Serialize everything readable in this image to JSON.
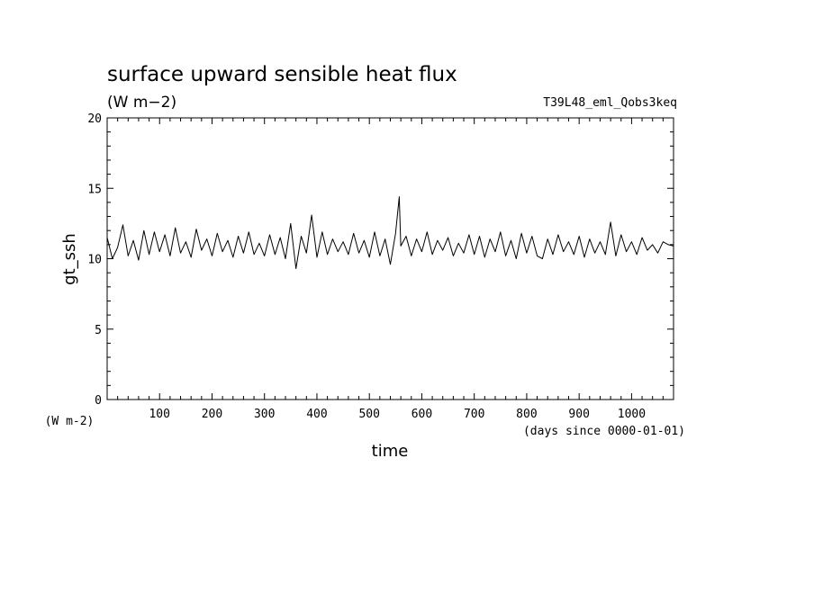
{
  "chart_data": {
    "type": "line",
    "title": "surface upward sensible heat flux",
    "units": "(W m−2)",
    "run_label": "T39L48_eml_Qobs3keq",
    "ylabel": "gt_ssh",
    "xlabel": "time",
    "x_units": "(days since 0000-01-01)",
    "y_units_bottom": "(W m-2)",
    "xlim": [
      0,
      1080
    ],
    "ylim": [
      0,
      20
    ],
    "x_ticks": [
      100,
      200,
      300,
      400,
      500,
      600,
      700,
      800,
      900,
      1000
    ],
    "y_ticks": [
      0,
      5,
      10,
      15,
      20
    ],
    "x_tick_labels": [
      "100",
      "200",
      "300",
      "400",
      "500",
      "600",
      "700",
      "800",
      "900",
      "1000"
    ],
    "y_tick_labels": [
      "0",
      "5",
      "10",
      "15",
      "20"
    ],
    "grid": false,
    "line_color": "#000000",
    "series": [
      {
        "x": [
          0,
          10,
          20,
          30,
          40,
          50,
          60,
          70,
          80,
          90,
          100,
          110,
          120,
          130,
          140,
          150,
          160,
          170,
          180,
          190,
          200,
          210,
          220,
          230,
          240,
          250,
          260,
          270,
          280,
          290,
          300,
          310,
          320,
          330,
          340,
          350,
          360,
          370,
          380,
          390,
          400,
          410,
          420,
          430,
          440,
          450,
          460,
          470,
          480,
          490,
          500,
          510,
          520,
          530,
          540,
          550,
          557,
          560,
          570,
          580,
          590,
          600,
          610,
          620,
          630,
          640,
          650,
          660,
          670,
          680,
          690,
          700,
          710,
          720,
          730,
          740,
          750,
          760,
          770,
          780,
          790,
          800,
          810,
          820,
          830,
          840,
          850,
          860,
          870,
          880,
          890,
          900,
          910,
          920,
          930,
          940,
          950,
          960,
          970,
          980,
          990,
          1000,
          1010,
          1020,
          1030,
          1040,
          1050,
          1060,
          1070,
          1080
        ],
        "values": [
          11.5,
          10.0,
          10.8,
          12.4,
          10.2,
          11.3,
          9.9,
          12.0,
          10.3,
          11.9,
          10.5,
          11.7,
          10.2,
          12.2,
          10.4,
          11.2,
          10.1,
          12.1,
          10.6,
          11.4,
          10.2,
          11.8,
          10.5,
          11.3,
          10.1,
          11.6,
          10.4,
          11.9,
          10.3,
          11.1,
          10.2,
          11.7,
          10.3,
          11.5,
          10.0,
          12.5,
          9.3,
          11.6,
          10.4,
          13.1,
          10.1,
          11.9,
          10.3,
          11.4,
          10.5,
          11.2,
          10.3,
          11.8,
          10.4,
          11.3,
          10.1,
          11.9,
          10.2,
          11.4,
          9.6,
          11.8,
          14.4,
          10.9,
          11.6,
          10.2,
          11.4,
          10.5,
          11.9,
          10.3,
          11.3,
          10.6,
          11.5,
          10.2,
          11.1,
          10.4,
          11.7,
          10.3,
          11.6,
          10.1,
          11.4,
          10.5,
          11.9,
          10.2,
          11.3,
          10.0,
          11.8,
          10.4,
          11.6,
          10.2,
          10.0,
          11.4,
          10.3,
          11.7,
          10.5,
          11.2,
          10.3,
          11.6,
          10.1,
          11.4,
          10.4,
          11.2,
          10.3,
          12.6,
          10.2,
          11.7,
          10.5,
          11.2,
          10.3,
          11.5,
          10.6,
          11.0,
          10.4,
          11.2,
          11.0,
          10.9
        ]
      }
    ]
  }
}
